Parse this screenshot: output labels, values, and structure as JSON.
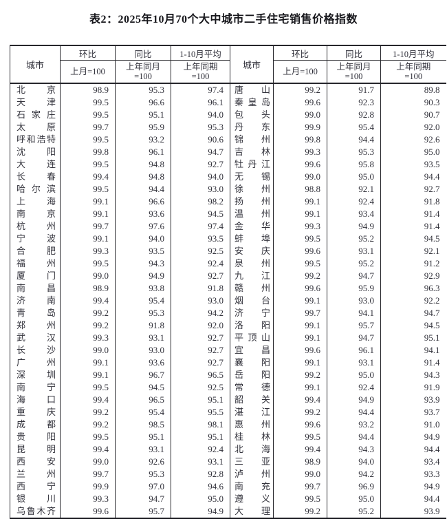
{
  "title": "表2：2025年10月70个大中城市二手住宅销售价格指数",
  "table": {
    "city_header": "城市",
    "col_groups": [
      {
        "top": "环比",
        "bottom1": "上月=100",
        "bottom2": ""
      },
      {
        "top": "同比",
        "bottom1": "上年同月",
        "bottom2": "=100"
      },
      {
        "top": "1-10月平均",
        "bottom1": "上年同期",
        "bottom2": "=100"
      }
    ],
    "rows": [
      {
        "l": [
          "北京",
          "98.9",
          "95.3",
          "97.4"
        ],
        "r": [
          "唐山",
          "99.2",
          "91.7",
          "89.8"
        ]
      },
      {
        "l": [
          "天津",
          "99.5",
          "96.6",
          "96.1"
        ],
        "r": [
          "秦皇岛",
          "99.6",
          "92.3",
          "90.3"
        ]
      },
      {
        "l": [
          "石家庄",
          "99.5",
          "95.1",
          "94.0"
        ],
        "r": [
          "包头",
          "99.0",
          "92.8",
          "90.7"
        ]
      },
      {
        "l": [
          "太原",
          "99.7",
          "95.9",
          "95.3"
        ],
        "r": [
          "丹东",
          "99.9",
          "95.4",
          "92.0"
        ]
      },
      {
        "l": [
          "呼和浩特",
          "99.5",
          "93.2",
          "90.6"
        ],
        "r": [
          "锦州",
          "99.8",
          "94.4",
          "92.6"
        ]
      },
      {
        "l": [
          "沈阳",
          "99.8",
          "96.1",
          "94.7"
        ],
        "r": [
          "吉林",
          "99.3",
          "95.3",
          "95.0"
        ]
      },
      {
        "l": [
          "大连",
          "99.5",
          "94.8",
          "92.7"
        ],
        "r": [
          "牡丹江",
          "99.6",
          "95.8",
          "93.5"
        ]
      },
      {
        "l": [
          "长春",
          "99.4",
          "94.8",
          "94.0"
        ],
        "r": [
          "无锡",
          "99.0",
          "95.0",
          "94.4"
        ]
      },
      {
        "l": [
          "哈尔滨",
          "99.5",
          "94.4",
          "93.0"
        ],
        "r": [
          "徐州",
          "98.8",
          "92.1",
          "92.7"
        ]
      },
      {
        "l": [
          "上海",
          "99.1",
          "96.6",
          "98.2"
        ],
        "r": [
          "扬州",
          "99.1",
          "92.4",
          "91.8"
        ]
      },
      {
        "l": [
          "南京",
          "99.1",
          "93.6",
          "94.5"
        ],
        "r": [
          "温州",
          "99.1",
          "93.4",
          "91.4"
        ]
      },
      {
        "l": [
          "杭州",
          "99.7",
          "97.6",
          "97.4"
        ],
        "r": [
          "金华",
          "99.3",
          "94.9",
          "91.4"
        ]
      },
      {
        "l": [
          "宁波",
          "99.1",
          "94.0",
          "93.5"
        ],
        "r": [
          "蚌埠",
          "99.5",
          "95.2",
          "94.5"
        ]
      },
      {
        "l": [
          "合肥",
          "99.3",
          "93.5",
          "92.5"
        ],
        "r": [
          "安庆",
          "99.6",
          "93.1",
          "92.1"
        ]
      },
      {
        "l": [
          "福州",
          "99.5",
          "94.3",
          "92.4"
        ],
        "r": [
          "泉州",
          "99.5",
          "95.2",
          "91.2"
        ]
      },
      {
        "l": [
          "厦门",
          "99.0",
          "94.9",
          "92.7"
        ],
        "r": [
          "九江",
          "99.2",
          "94.7",
          "92.9"
        ]
      },
      {
        "l": [
          "南昌",
          "98.9",
          "93.8",
          "91.8"
        ],
        "r": [
          "赣州",
          "99.6",
          "95.9",
          "96.3"
        ]
      },
      {
        "l": [
          "济南",
          "99.4",
          "95.4",
          "93.0"
        ],
        "r": [
          "烟台",
          "99.1",
          "93.0",
          "92.2"
        ]
      },
      {
        "l": [
          "青岛",
          "99.2",
          "95.3",
          "94.2"
        ],
        "r": [
          "济宁",
          "99.7",
          "94.1",
          "94.7"
        ]
      },
      {
        "l": [
          "郑州",
          "99.2",
          "91.8",
          "92.0"
        ],
        "r": [
          "洛阳",
          "99.1",
          "95.7",
          "94.5"
        ]
      },
      {
        "l": [
          "武汉",
          "99.3",
          "93.1",
          "92.7"
        ],
        "r": [
          "平顶山",
          "99.1",
          "94.7",
          "95.1"
        ]
      },
      {
        "l": [
          "长沙",
          "99.0",
          "93.0",
          "92.7"
        ],
        "r": [
          "宜昌",
          "99.6",
          "96.1",
          "94.1"
        ]
      },
      {
        "l": [
          "广州",
          "99.1",
          "93.6",
          "92.7"
        ],
        "r": [
          "襄阳",
          "99.1",
          "93.1",
          "91.4"
        ]
      },
      {
        "l": [
          "深圳",
          "99.1",
          "96.7",
          "96.5"
        ],
        "r": [
          "岳阳",
          "99.2",
          "95.0",
          "94.3"
        ]
      },
      {
        "l": [
          "南宁",
          "99.5",
          "94.5",
          "92.5"
        ],
        "r": [
          "常德",
          "99.1",
          "92.4",
          "91.9"
        ]
      },
      {
        "l": [
          "海口",
          "99.4",
          "96.5",
          "95.1"
        ],
        "r": [
          "韶关",
          "99.4",
          "94.9",
          "93.9"
        ]
      },
      {
        "l": [
          "重庆",
          "99.2",
          "95.4",
          "95.5"
        ],
        "r": [
          "湛江",
          "99.2",
          "94.4",
          "93.7"
        ]
      },
      {
        "l": [
          "成都",
          "99.2",
          "98.5",
          "98.1"
        ],
        "r": [
          "惠州",
          "99.6",
          "93.2",
          "91.0"
        ]
      },
      {
        "l": [
          "贵阳",
          "99.5",
          "95.1",
          "95.1"
        ],
        "r": [
          "桂林",
          "99.5",
          "94.4",
          "94.9"
        ]
      },
      {
        "l": [
          "昆明",
          "99.4",
          "93.1",
          "92.4"
        ],
        "r": [
          "北海",
          "99.4",
          "94.3",
          "94.4"
        ]
      },
      {
        "l": [
          "西安",
          "99.0",
          "92.6",
          "93.1"
        ],
        "r": [
          "三亚",
          "98.9",
          "94.0",
          "93.4"
        ]
      },
      {
        "l": [
          "兰州",
          "99.7",
          "95.3",
          "92.8"
        ],
        "r": [
          "泸州",
          "99.0",
          "94.2",
          "93.3"
        ]
      },
      {
        "l": [
          "西宁",
          "99.9",
          "97.0",
          "94.6"
        ],
        "r": [
          "南充",
          "99.7",
          "96.9",
          "94.9"
        ]
      },
      {
        "l": [
          "银川",
          "99.3",
          "94.7",
          "95.0"
        ],
        "r": [
          "遵义",
          "99.5",
          "95.0",
          "94.4"
        ]
      },
      {
        "l": [
          "乌鲁木齐",
          "99.6",
          "95.7",
          "94.9"
        ],
        "r": [
          "大理",
          "99.2",
          "95.2",
          "93.9"
        ]
      }
    ]
  }
}
